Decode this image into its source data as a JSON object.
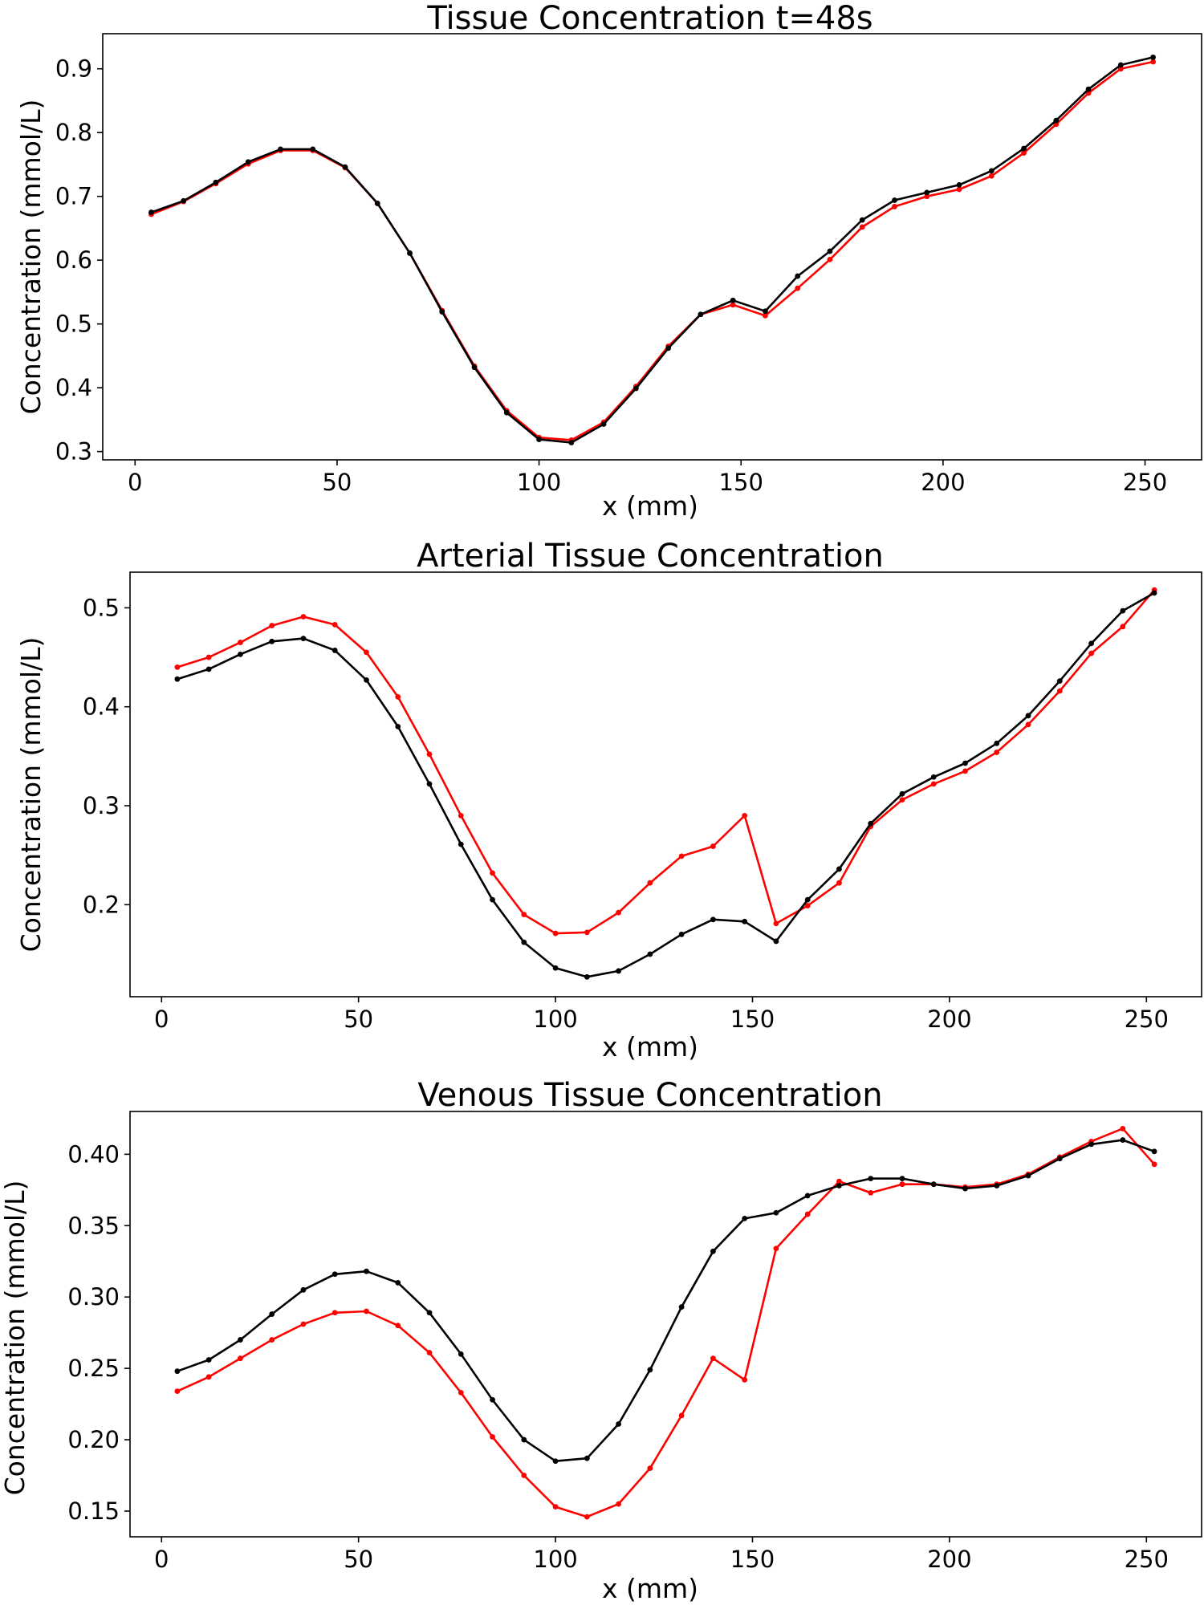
{
  "chart_data": [
    {
      "type": "line",
      "title": "Tissue Concentration t=48s",
      "xlabel": "x (mm)",
      "ylabel": "Concentration (mmol/L)",
      "xlim": [
        -8,
        264
      ],
      "ylim": [
        0.287,
        0.955
      ],
      "xticks": [
        0,
        50,
        100,
        150,
        200,
        250
      ],
      "xtick_labels": [
        "0",
        "50",
        "100",
        "150",
        "200",
        "250"
      ],
      "yticks": [
        0.3,
        0.4,
        0.5,
        0.6,
        0.7,
        0.8,
        0.9
      ],
      "ytick_labels": [
        "0.3",
        "0.4",
        "0.5",
        "0.6",
        "0.7",
        "0.8",
        "0.9"
      ],
      "grid": false,
      "x": [
        4,
        12,
        20,
        28,
        36,
        44,
        52,
        60,
        68,
        76,
        84,
        92,
        100,
        108,
        116,
        124,
        132,
        140,
        148,
        156,
        164,
        172,
        180,
        188,
        196,
        204,
        212,
        220,
        228,
        236,
        244,
        252
      ],
      "series": [
        {
          "color": "#ff0000",
          "values": [
            0.672,
            0.692,
            0.72,
            0.751,
            0.772,
            0.772,
            0.745,
            0.689,
            0.611,
            0.521,
            0.434,
            0.364,
            0.322,
            0.318,
            0.346,
            0.402,
            0.465,
            0.515,
            0.53,
            0.513,
            0.556,
            0.601,
            0.652,
            0.684,
            0.7,
            0.711,
            0.732,
            0.768,
            0.813,
            0.862,
            0.9,
            0.911
          ]
        },
        {
          "color": "#000000",
          "values": [
            0.675,
            0.693,
            0.722,
            0.754,
            0.774,
            0.774,
            0.746,
            0.689,
            0.611,
            0.519,
            0.432,
            0.361,
            0.319,
            0.314,
            0.343,
            0.399,
            0.462,
            0.515,
            0.537,
            0.52,
            0.575,
            0.614,
            0.663,
            0.694,
            0.706,
            0.718,
            0.74,
            0.775,
            0.819,
            0.868,
            0.906,
            0.918
          ]
        }
      ]
    },
    {
      "type": "line",
      "title": "Arterial Tissue Concentration",
      "xlabel": "x (mm)",
      "ylabel": "Concentration (mmol/L)",
      "xlim": [
        -8,
        264
      ],
      "ylim": [
        0.107,
        0.536
      ],
      "xticks": [
        0,
        50,
        100,
        150,
        200,
        250
      ],
      "xtick_labels": [
        "0",
        "50",
        "100",
        "150",
        "200",
        "250"
      ],
      "yticks": [
        0.2,
        0.3,
        0.4,
        0.5
      ],
      "ytick_labels": [
        "0.2",
        "0.3",
        "0.4",
        "0.5"
      ],
      "grid": false,
      "x": [
        4,
        12,
        20,
        28,
        36,
        44,
        52,
        60,
        68,
        76,
        84,
        92,
        100,
        108,
        116,
        124,
        132,
        140,
        148,
        156,
        164,
        172,
        180,
        188,
        196,
        204,
        212,
        220,
        228,
        236,
        244,
        252
      ],
      "series": [
        {
          "color": "#ff0000",
          "values": [
            0.44,
            0.45,
            0.465,
            0.482,
            0.491,
            0.483,
            0.455,
            0.41,
            0.352,
            0.29,
            0.232,
            0.19,
            0.171,
            0.172,
            0.192,
            0.222,
            0.249,
            0.259,
            0.29,
            0.181,
            0.199,
            0.222,
            0.279,
            0.306,
            0.322,
            0.335,
            0.354,
            0.382,
            0.416,
            0.454,
            0.481,
            0.518
          ]
        },
        {
          "color": "#000000",
          "values": [
            0.428,
            0.438,
            0.453,
            0.466,
            0.469,
            0.457,
            0.427,
            0.38,
            0.322,
            0.261,
            0.205,
            0.162,
            0.136,
            0.127,
            0.133,
            0.15,
            0.17,
            0.185,
            0.183,
            0.163,
            0.205,
            0.236,
            0.282,
            0.312,
            0.329,
            0.343,
            0.363,
            0.391,
            0.426,
            0.464,
            0.497,
            0.515
          ]
        }
      ]
    },
    {
      "type": "line",
      "title": "Venous Tissue Concentration",
      "xlabel": "x (mm)",
      "ylabel": "Concentration (mmol/L)",
      "xlim": [
        -8,
        264
      ],
      "ylim": [
        0.132,
        0.43
      ],
      "xticks": [
        0,
        50,
        100,
        150,
        200,
        250
      ],
      "xtick_labels": [
        "0",
        "50",
        "100",
        "150",
        "200",
        "250"
      ],
      "yticks": [
        0.15,
        0.2,
        0.25,
        0.3,
        0.35,
        0.4
      ],
      "ytick_labels": [
        "0.15",
        "0.20",
        "0.25",
        "0.30",
        "0.35",
        "0.40"
      ],
      "grid": false,
      "x": [
        4,
        12,
        20,
        28,
        36,
        44,
        52,
        60,
        68,
        76,
        84,
        92,
        100,
        108,
        116,
        124,
        132,
        140,
        148,
        156,
        164,
        172,
        180,
        188,
        196,
        204,
        212,
        220,
        228,
        236,
        244,
        252
      ],
      "series": [
        {
          "color": "#ff0000",
          "values": [
            0.234,
            0.244,
            0.257,
            0.27,
            0.281,
            0.289,
            0.29,
            0.28,
            0.261,
            0.233,
            0.202,
            0.175,
            0.153,
            0.146,
            0.155,
            0.18,
            0.217,
            0.257,
            0.242,
            0.334,
            0.358,
            0.381,
            0.373,
            0.379,
            0.379,
            0.377,
            0.379,
            0.386,
            0.398,
            0.409,
            0.418,
            0.393
          ]
        },
        {
          "color": "#000000",
          "values": [
            0.248,
            0.256,
            0.27,
            0.288,
            0.305,
            0.316,
            0.318,
            0.31,
            0.289,
            0.26,
            0.228,
            0.2,
            0.185,
            0.187,
            0.211,
            0.249,
            0.293,
            0.332,
            0.355,
            0.359,
            0.371,
            0.378,
            0.383,
            0.383,
            0.379,
            0.376,
            0.378,
            0.385,
            0.397,
            0.407,
            0.41,
            0.402
          ]
        }
      ]
    }
  ]
}
